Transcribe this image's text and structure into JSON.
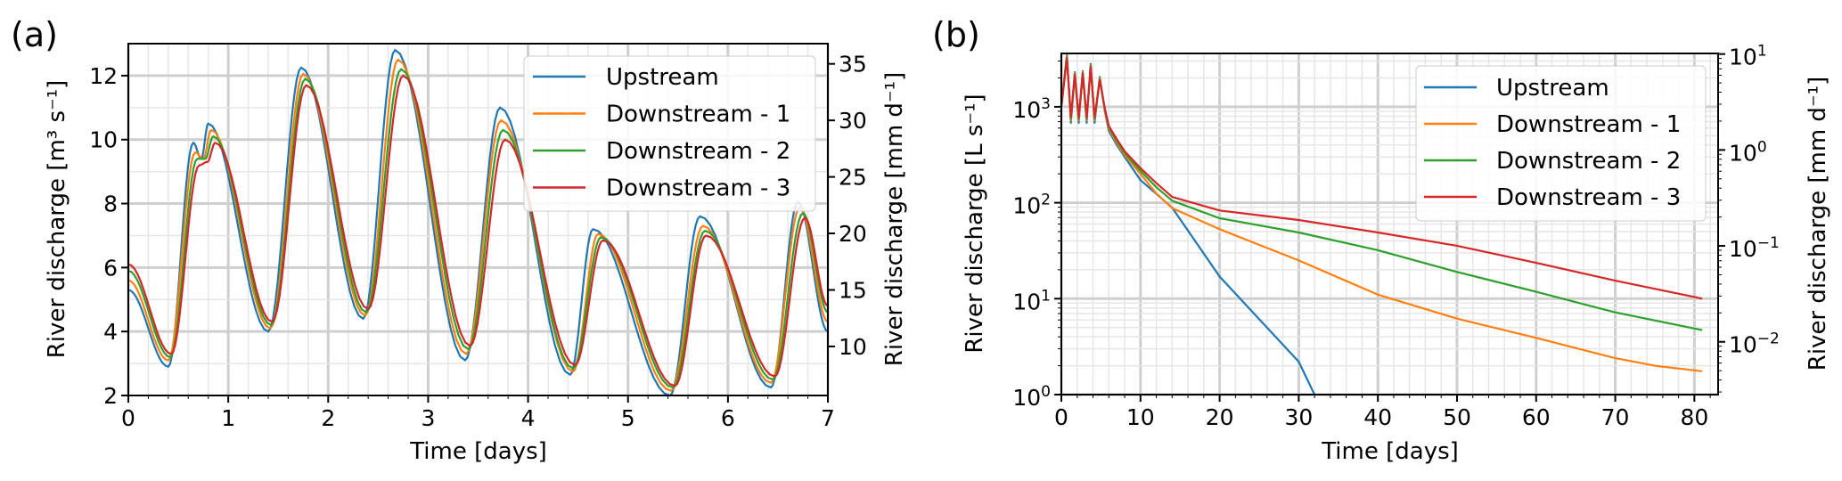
{
  "chart_data": [
    {
      "type": "line",
      "panel_label": "(a)",
      "xlabel": "Time [days]",
      "ylabel": "River discharge [m³ s⁻¹]",
      "ylabel_right": "River discharge [mm d⁻¹]",
      "xlim": [
        0,
        7
      ],
      "ylim": [
        2,
        13
      ],
      "xticks": [
        0,
        1,
        2,
        3,
        4,
        5,
        6,
        7
      ],
      "yticks": [
        2,
        4,
        6,
        8,
        10,
        12
      ],
      "yticks_right": [
        10,
        15,
        20,
        25,
        30,
        35
      ],
      "right_axis_factor_mm_per_m3s": 2.83,
      "grid": true,
      "legend_position": "top-right",
      "series": [
        {
          "name": "Upstream",
          "color": "#1f77b4",
          "x": [
            0,
            0.4,
            0.65,
            0.73,
            0.8,
            1.4,
            1.73,
            2.35,
            2.67,
            3.37,
            3.72,
            4.42,
            4.65,
            5.42,
            5.72,
            6.43,
            6.7,
            7.0
          ],
          "y": [
            5.3,
            2.9,
            9.9,
            9.4,
            10.5,
            4.0,
            12.25,
            4.4,
            12.8,
            3.1,
            11.0,
            2.65,
            7.2,
            2.0,
            7.6,
            2.25,
            8.05,
            4.0
          ]
        },
        {
          "name": "Downstream - 1",
          "color": "#ff7f0e",
          "x": [
            0,
            0.4,
            0.67,
            0.75,
            0.83,
            1.42,
            1.75,
            2.37,
            2.7,
            3.38,
            3.73,
            4.45,
            4.7,
            5.43,
            5.75,
            6.43,
            6.72,
            7.0
          ],
          "y": [
            5.6,
            3.1,
            9.6,
            9.4,
            10.3,
            4.1,
            12.05,
            4.5,
            12.5,
            3.3,
            10.6,
            2.75,
            7.05,
            2.15,
            7.3,
            2.4,
            7.9,
            4.3
          ]
        },
        {
          "name": "Downstream - 2",
          "color": "#2ca02c",
          "x": [
            0,
            0.42,
            0.69,
            0.77,
            0.85,
            1.43,
            1.77,
            2.38,
            2.73,
            3.4,
            3.75,
            4.45,
            4.73,
            5.45,
            5.77,
            6.45,
            6.75,
            7.0
          ],
          "y": [
            5.9,
            3.2,
            9.4,
            9.4,
            10.1,
            4.2,
            11.9,
            4.6,
            12.2,
            3.45,
            10.3,
            2.85,
            6.95,
            2.25,
            7.15,
            2.5,
            7.7,
            4.6
          ]
        },
        {
          "name": "Downstream - 3",
          "color": "#d62728",
          "x": [
            0,
            0.43,
            0.71,
            0.79,
            0.87,
            1.44,
            1.78,
            2.4,
            2.75,
            3.42,
            3.77,
            4.47,
            4.75,
            5.47,
            5.78,
            6.47,
            6.77,
            7.0
          ],
          "y": [
            6.1,
            3.3,
            9.2,
            9.3,
            9.9,
            4.3,
            11.7,
            4.7,
            12.0,
            3.55,
            10.0,
            2.95,
            6.85,
            2.3,
            7.0,
            2.6,
            7.55,
            4.8
          ]
        }
      ]
    },
    {
      "type": "line",
      "panel_label": "(b)",
      "xlabel": "Time [days]",
      "ylabel": "River discharge [L s⁻¹]",
      "ylabel_right": "River discharge [mm d⁻¹]",
      "yscale": "log",
      "xlim": [
        0,
        83
      ],
      "ylim": [
        1,
        3600
      ],
      "xticks": [
        0,
        10,
        20,
        30,
        40,
        50,
        60,
        70,
        80
      ],
      "yticks": [
        {
          "base": "10",
          "exp": "0",
          "value": 1
        },
        {
          "base": "10",
          "exp": "1",
          "value": 10
        },
        {
          "base": "10",
          "exp": "2",
          "value": 100
        },
        {
          "base": "10",
          "exp": "3",
          "value": 1000
        }
      ],
      "yticks_right": [
        {
          "base": "10",
          "exp": "−2",
          "value": 0.01
        },
        {
          "base": "10",
          "exp": "−1",
          "value": 0.1
        },
        {
          "base": "10",
          "exp": "0",
          "value": 1
        },
        {
          "base": "10",
          "exp": "1",
          "value": 10
        }
      ],
      "right_axis_factor_Ls_per_mmd": 355,
      "grid": true,
      "legend_position": "top-right",
      "series": [
        {
          "name": "Upstream",
          "color": "#1f77b4",
          "x": [
            0,
            0.7,
            1.2,
            1.7,
            2.2,
            2.7,
            3.2,
            3.7,
            4.2,
            4.85,
            5.5,
            6,
            7,
            8,
            10,
            14,
            20,
            30,
            32
          ],
          "y": [
            1000,
            3500,
            680,
            2300,
            680,
            2350,
            680,
            2800,
            680,
            2050,
            900,
            560,
            400,
            300,
            172,
            89,
            17,
            2.2,
            1.0
          ]
        },
        {
          "name": "Downstream - 1",
          "color": "#ff7f0e",
          "x": [
            0,
            0.7,
            1.2,
            1.7,
            2.2,
            2.7,
            3.2,
            3.7,
            4.2,
            4.85,
            5.5,
            6,
            7,
            8,
            10,
            12,
            14,
            20,
            30,
            40,
            50,
            60,
            70,
            75,
            81
          ],
          "y": [
            1000,
            3400,
            720,
            2250,
            720,
            2300,
            720,
            2700,
            720,
            2000,
            920,
            590,
            420,
            315,
            200,
            125,
            88,
            53,
            25,
            11,
            6.2,
            3.9,
            2.4,
            2.0,
            1.75
          ]
        },
        {
          "name": "Downstream - 2",
          "color": "#2ca02c",
          "x": [
            0,
            0.7,
            1.2,
            1.7,
            2.2,
            2.7,
            3.2,
            3.7,
            4.2,
            4.85,
            5.5,
            6,
            7,
            8,
            10,
            12,
            14,
            20,
            30,
            40,
            50,
            60,
            70,
            81
          ],
          "y": [
            1000,
            3300,
            750,
            2200,
            750,
            2250,
            750,
            2650,
            750,
            1950,
            940,
            610,
            440,
            330,
            215,
            145,
            105,
            69,
            49,
            32,
            19,
            11.8,
            7.2,
            4.7
          ]
        },
        {
          "name": "Downstream - 3",
          "color": "#d62728",
          "x": [
            0,
            0.7,
            1.2,
            1.7,
            2.2,
            2.7,
            3.2,
            3.7,
            4.2,
            4.85,
            5.5,
            6,
            7,
            8,
            10,
            12,
            14,
            20,
            30,
            40,
            50,
            60,
            70,
            81
          ],
          "y": [
            1000,
            3200,
            780,
            2150,
            780,
            2200,
            780,
            2600,
            780,
            1900,
            960,
            630,
            460,
            345,
            230,
            160,
            115,
            83,
            66,
            49,
            35.6,
            23.6,
            15.4,
            10
          ]
        }
      ]
    }
  ]
}
